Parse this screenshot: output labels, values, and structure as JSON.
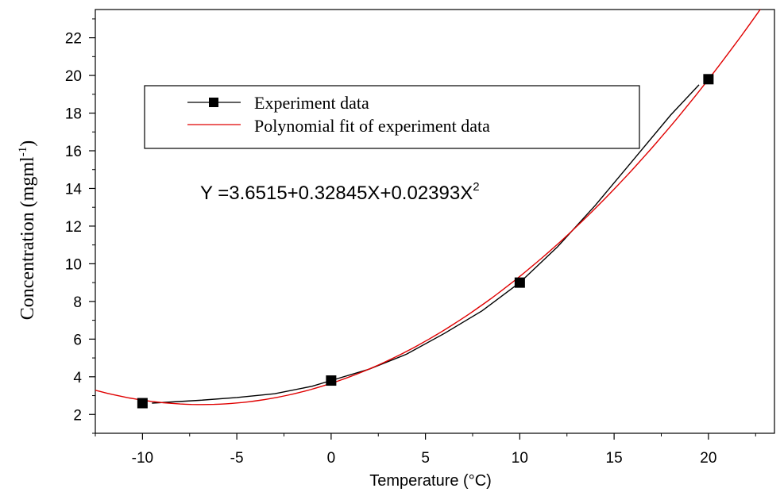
{
  "chart_data": {
    "type": "line",
    "title": "",
    "xlabel": "Temperature (°C)",
    "ylabel": "Concentration (mgml",
    "ylabel_sup": "-1",
    "ylabel_end": ")",
    "xlim": [
      -12.5,
      23.5
    ],
    "ylim": [
      1,
      23.5
    ],
    "x_ticks": [
      -10,
      -5,
      0,
      5,
      10,
      15,
      20
    ],
    "y_ticks": [
      2,
      4,
      6,
      8,
      10,
      12,
      14,
      16,
      18,
      20,
      22
    ],
    "x_tick_labels": [
      "-10",
      "-5",
      "0",
      "5",
      "10",
      "15",
      "20"
    ],
    "y_tick_labels": [
      "2",
      "4",
      "6",
      "8",
      "10",
      "12",
      "14",
      "16",
      "18",
      "20",
      "22"
    ],
    "grid": false,
    "legend_position": "top-left",
    "series": [
      {
        "name": "Experiment data",
        "color": "#000000",
        "marker": "square",
        "x": [
          -10,
          0,
          10,
          20
        ],
        "y": [
          2.6,
          3.8,
          9.0,
          19.8
        ],
        "curve_x": [
          -9.5,
          -7,
          -5,
          -3,
          -1,
          0,
          2,
          4,
          6,
          8,
          10,
          12,
          14,
          16,
          18,
          19.5
        ],
        "curve_y": [
          2.6,
          2.75,
          2.9,
          3.1,
          3.5,
          3.8,
          4.4,
          5.2,
          6.3,
          7.5,
          9.0,
          10.9,
          13.1,
          15.5,
          17.9,
          19.5
        ]
      },
      {
        "name": "Polynomial fit of experiment data",
        "color": "#e00000",
        "coefficients": [
          3.6515,
          0.32845,
          0.02393
        ],
        "x_range": [
          -12.5,
          23.5
        ]
      }
    ],
    "annotations": {
      "equation_main": "Y =3.6515+0.32845X+0.02393X",
      "equation_sup": "2"
    }
  }
}
